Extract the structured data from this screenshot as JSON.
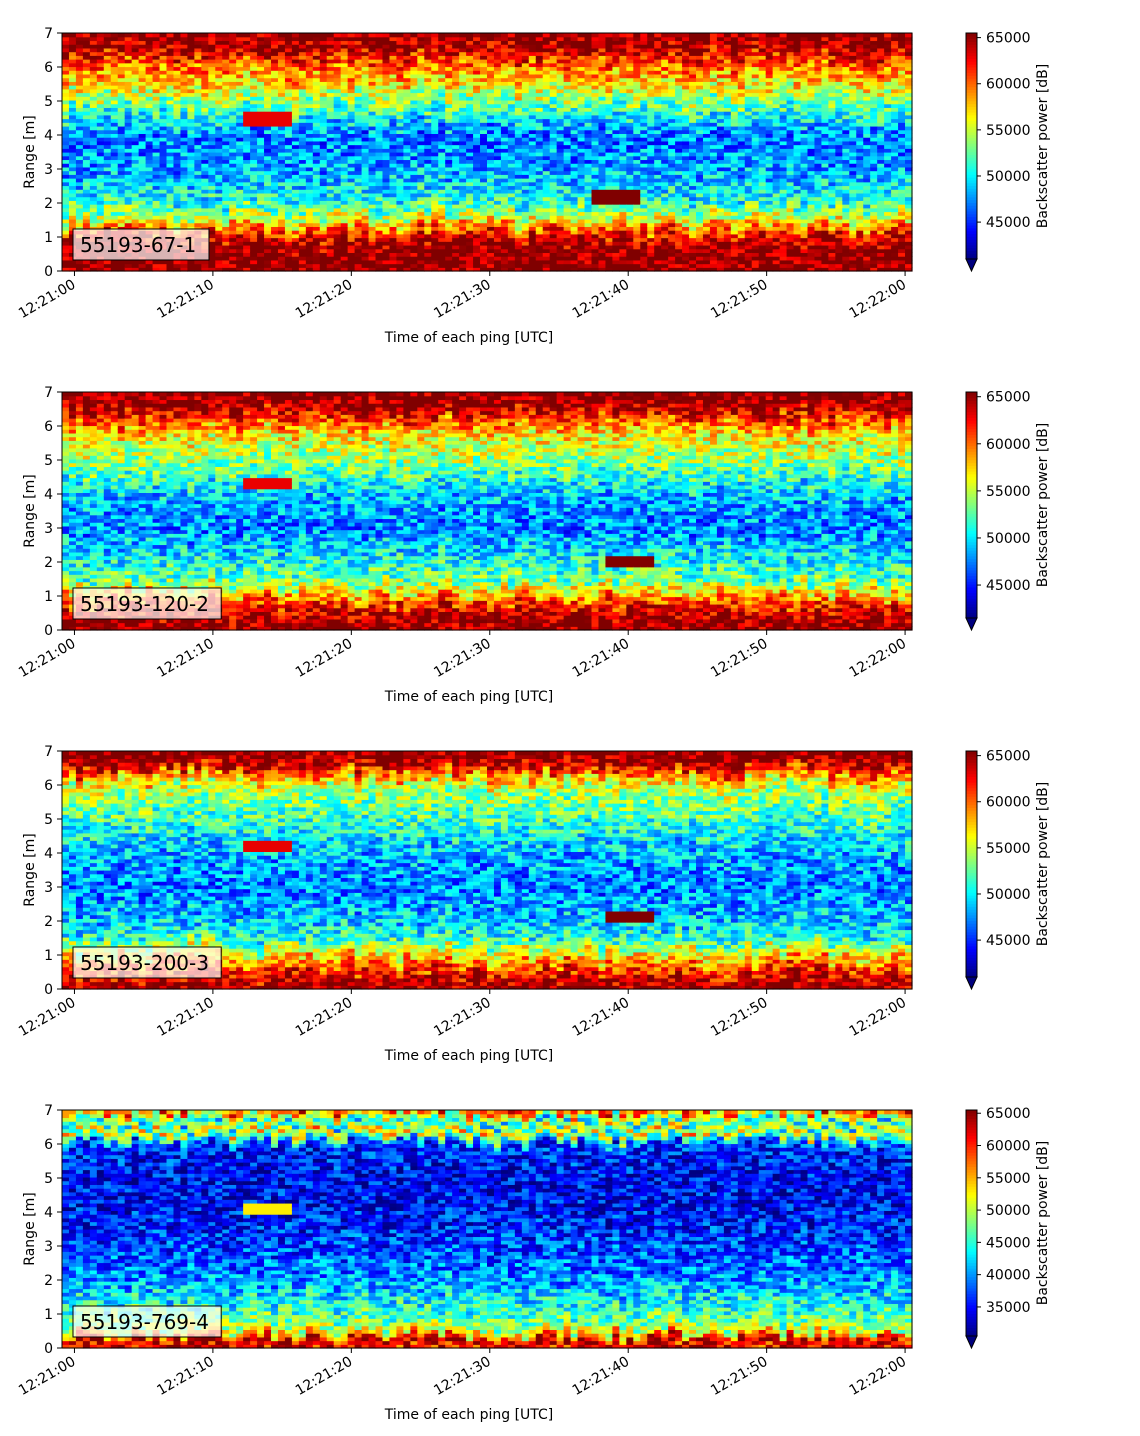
{
  "chart_data": [
    {
      "type": "heatmap",
      "panel_label": "55193-67-1",
      "xlabel": "Time of each ping [UTC]",
      "ylabel": "Range [m]",
      "x_ticks": [
        "12:21:00",
        "12:21:10",
        "12:21:20",
        "12:21:30",
        "12:21:40",
        "12:21:50",
        "12:22:00"
      ],
      "x_range": [
        "12:21:00",
        "12:22:00"
      ],
      "y_ticks": [
        0,
        1,
        2,
        3,
        4,
        5,
        6,
        7
      ],
      "ylim": [
        0,
        7
      ],
      "colormap": "jet",
      "colorbar_label": "Backscatter power [dB]",
      "colorbar_ticks": [
        45000,
        50000,
        55000,
        60000,
        65000
      ],
      "colorbar_range": [
        41000,
        65500
      ],
      "colorbar_extend": "min",
      "profile": [
        {
          "range": 0.0,
          "value": 65500
        },
        {
          "range": 0.6,
          "value": 65500
        },
        {
          "range": 1.1,
          "value": 62000
        },
        {
          "range": 1.5,
          "value": 56000
        },
        {
          "range": 2.0,
          "value": 51000
        },
        {
          "range": 3.0,
          "value": 48000
        },
        {
          "range": 4.0,
          "value": 47000
        },
        {
          "range": 4.8,
          "value": 52000
        },
        {
          "range": 5.5,
          "value": 57000
        },
        {
          "range": 6.2,
          "value": 61000
        },
        {
          "range": 6.5,
          "value": 64000
        },
        {
          "range": 7.0,
          "value": 65500
        }
      ],
      "features": [
        {
          "time": "12:21:39",
          "range": 2.2,
          "value": 65500
        },
        {
          "time": "12:21:14",
          "range": 4.5,
          "value": 63000
        }
      ]
    },
    {
      "type": "heatmap",
      "panel_label": "55193-120-2",
      "xlabel": "Time of each ping [UTC]",
      "ylabel": "Range [m]",
      "x_ticks": [
        "12:21:00",
        "12:21:10",
        "12:21:20",
        "12:21:30",
        "12:21:40",
        "12:21:50",
        "12:22:00"
      ],
      "x_range": [
        "12:21:00",
        "12:22:00"
      ],
      "y_ticks": [
        0,
        1,
        2,
        3,
        4,
        5,
        6,
        7
      ],
      "ylim": [
        0,
        7
      ],
      "colormap": "jet",
      "colorbar_label": "Backscatter power [dB]",
      "colorbar_ticks": [
        45000,
        50000,
        55000,
        60000,
        65000
      ],
      "colorbar_range": [
        41500,
        65500
      ],
      "colorbar_extend": "min",
      "profile": [
        {
          "range": 0.0,
          "value": 65500
        },
        {
          "range": 0.5,
          "value": 64000
        },
        {
          "range": 1.0,
          "value": 59000
        },
        {
          "range": 1.5,
          "value": 53000
        },
        {
          "range": 2.0,
          "value": 51000
        },
        {
          "range": 3.0,
          "value": 47500
        },
        {
          "range": 4.0,
          "value": 49000
        },
        {
          "range": 5.0,
          "value": 54000
        },
        {
          "range": 5.8,
          "value": 57000
        },
        {
          "range": 6.3,
          "value": 62000
        },
        {
          "range": 6.6,
          "value": 65000
        },
        {
          "range": 7.0,
          "value": 65500
        }
      ],
      "features": [
        {
          "time": "12:21:40",
          "range": 2.0,
          "value": 65500
        },
        {
          "time": "12:21:14",
          "range": 4.3,
          "value": 63000
        }
      ]
    },
    {
      "type": "heatmap",
      "panel_label": "55193-200-3",
      "xlabel": "Time of each ping [UTC]",
      "ylabel": "Range [m]",
      "x_ticks": [
        "12:21:00",
        "12:21:10",
        "12:21:20",
        "12:21:30",
        "12:21:40",
        "12:21:50",
        "12:22:00"
      ],
      "x_range": [
        "12:21:00",
        "12:22:00"
      ],
      "y_ticks": [
        0,
        1,
        2,
        3,
        4,
        5,
        6,
        7
      ],
      "ylim": [
        0,
        7
      ],
      "colormap": "jet",
      "colorbar_label": "Backscatter power [dB]",
      "colorbar_ticks": [
        45000,
        50000,
        55000,
        60000,
        65000
      ],
      "colorbar_range": [
        41000,
        65500
      ],
      "colorbar_extend": "min",
      "profile": [
        {
          "range": 0.0,
          "value": 65500
        },
        {
          "range": 0.4,
          "value": 63000
        },
        {
          "range": 1.0,
          "value": 57000
        },
        {
          "range": 1.5,
          "value": 51000
        },
        {
          "range": 2.0,
          "value": 49000
        },
        {
          "range": 3.0,
          "value": 47000
        },
        {
          "range": 4.0,
          "value": 48500
        },
        {
          "range": 5.0,
          "value": 51500
        },
        {
          "range": 6.0,
          "value": 55000
        },
        {
          "range": 6.4,
          "value": 61000
        },
        {
          "range": 6.7,
          "value": 65000
        },
        {
          "range": 7.0,
          "value": 65500
        }
      ],
      "features": [
        {
          "time": "12:21:40",
          "range": 2.1,
          "value": 65500
        },
        {
          "time": "12:21:14",
          "range": 4.2,
          "value": 63000
        }
      ]
    },
    {
      "type": "heatmap",
      "panel_label": "55193-769-4",
      "xlabel": "Time of each ping [UTC]",
      "ylabel": "Range [m]",
      "x_ticks": [
        "12:21:00",
        "12:21:10",
        "12:21:20",
        "12:21:30",
        "12:21:40",
        "12:21:50",
        "12:22:00"
      ],
      "x_range": [
        "12:21:00",
        "12:22:00"
      ],
      "y_ticks": [
        0,
        1,
        2,
        3,
        4,
        5,
        6,
        7
      ],
      "ylim": [
        0,
        7
      ],
      "colormap": "jet",
      "colorbar_label": "Backscatter power [dB]",
      "colorbar_ticks": [
        35000,
        40000,
        45000,
        50000,
        55000,
        60000,
        65000
      ],
      "colorbar_range": [
        30500,
        65500
      ],
      "colorbar_extend": "min",
      "profile": [
        {
          "range": 0.0,
          "value": 65500
        },
        {
          "range": 0.25,
          "value": 62000
        },
        {
          "range": 0.5,
          "value": 50000
        },
        {
          "range": 1.0,
          "value": 46000
        },
        {
          "range": 2.0,
          "value": 40000
        },
        {
          "range": 3.0,
          "value": 37000
        },
        {
          "range": 4.0,
          "value": 35000
        },
        {
          "range": 5.0,
          "value": 34500
        },
        {
          "range": 6.0,
          "value": 36500
        },
        {
          "range": 6.35,
          "value": 55000
        },
        {
          "range": 6.6,
          "value": 42000
        },
        {
          "range": 7.0,
          "value": 60000
        }
      ],
      "features": [
        {
          "time": "12:21:14",
          "range": 4.1,
          "value": 53000
        }
      ]
    }
  ]
}
